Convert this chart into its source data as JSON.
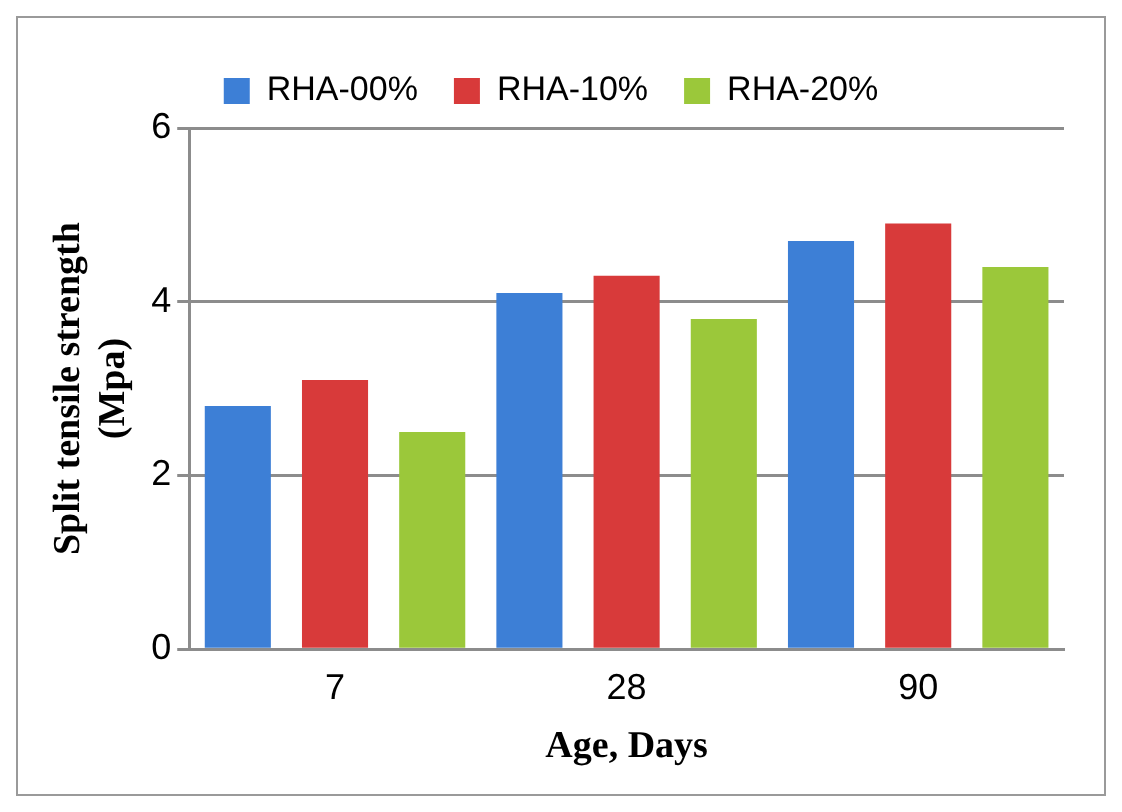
{
  "chart_data": {
    "type": "bar",
    "categories": [
      "7",
      "28",
      "90"
    ],
    "xlabel": "Age, Days",
    "ylabel": "Split tensile strength (Mpa)",
    "series": [
      {
        "name": "RHA-00%",
        "color": "#3d7fd6",
        "values": [
          2.8,
          4.1,
          4.7
        ]
      },
      {
        "name": "RHA-10%",
        "color": "#d83a3a",
        "values": [
          3.1,
          4.3,
          4.9
        ]
      },
      {
        "name": "RHA-20%",
        "color": "#9bc83a",
        "values": [
          2.5,
          3.8,
          4.4
        ]
      }
    ],
    "ylim": [
      0,
      6
    ],
    "yticks": [
      0,
      2,
      4,
      6
    ],
    "grid": "y",
    "legend": "top"
  }
}
